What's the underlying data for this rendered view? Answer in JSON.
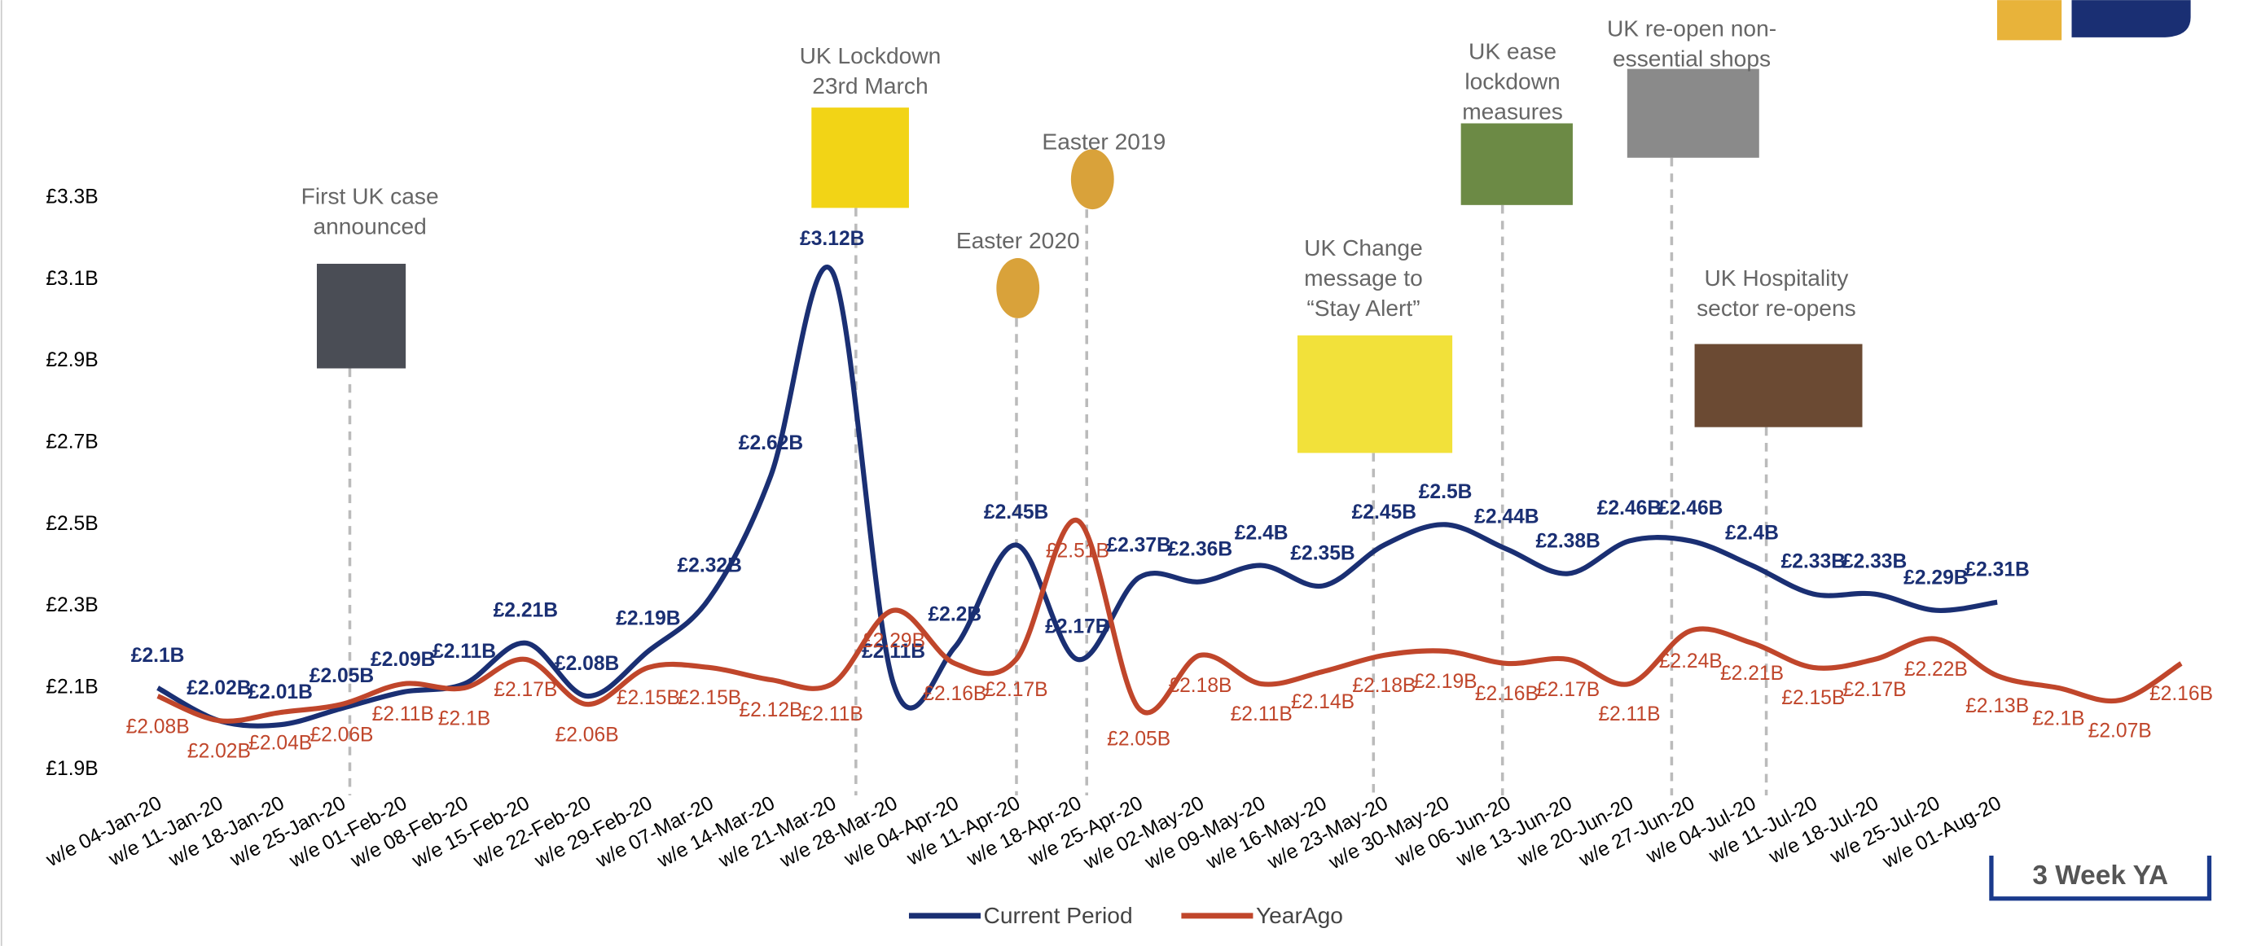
{
  "chart_data": {
    "type": "line",
    "categories": [
      "w/e 04-Jan-20",
      "w/e 11-Jan-20",
      "w/e 18-Jan-20",
      "w/e 25-Jan-20",
      "w/e 01-Feb-20",
      "w/e 08-Feb-20",
      "w/e 15-Feb-20",
      "w/e 22-Feb-20",
      "w/e 29-Feb-20",
      "w/e 07-Mar-20",
      "w/e 14-Mar-20",
      "w/e 21-Mar-20",
      "w/e 28-Mar-20",
      "w/e 04-Apr-20",
      "w/e 11-Apr-20",
      "w/e 18-Apr-20",
      "w/e 25-Apr-20",
      "w/e 02-May-20",
      "w/e 09-May-20",
      "w/e 16-May-20",
      "w/e 23-May-20",
      "w/e 30-May-20",
      "w/e 06-Jun-20",
      "w/e 13-Jun-20",
      "w/e 20-Jun-20",
      "w/e 27-Jun-20",
      "w/e 04-Jul-20",
      "w/e 11-Jul-20",
      "w/e 18-Jul-20",
      "w/e 25-Jul-20",
      "w/e 01-Aug-20",
      null,
      null,
      null
    ],
    "series": [
      {
        "name": "Current Period",
        "color": "#1a2f73",
        "values": [
          2.1,
          2.02,
          2.01,
          2.05,
          2.09,
          2.11,
          2.21,
          2.08,
          2.19,
          2.32,
          2.62,
          3.12,
          2.11,
          2.2,
          2.45,
          2.17,
          2.37,
          2.36,
          2.4,
          2.35,
          2.45,
          2.5,
          2.44,
          2.38,
          2.46,
          2.46,
          2.4,
          2.33,
          2.33,
          2.29,
          2.31,
          null,
          null,
          null
        ],
        "value_labels": [
          "£2.1B",
          "£2.02B",
          "£2.01B",
          "£2.05B",
          "£2.09B",
          "£2.11B",
          "£2.21B",
          "£2.08B",
          "£2.19B",
          "£2.32B",
          "£2.62B",
          "£3.12B",
          "£2.11B",
          "£2.2B",
          "£2.45B",
          "£2.17B",
          "£2.37B",
          "£2.36B",
          "£2.4B",
          "£2.35B",
          "£2.45B",
          "£2.5B",
          "£2.44B",
          "£2.38B",
          "£2.46B",
          "£2.46B",
          "£2.4B",
          "£2.33B",
          "£2.33B",
          "£2.29B",
          "£2.31B",
          null,
          null,
          null
        ]
      },
      {
        "name": "YearAgo",
        "color": "#c0462b",
        "values": [
          2.08,
          2.02,
          2.04,
          2.06,
          2.11,
          2.1,
          2.17,
          2.06,
          2.15,
          2.15,
          2.12,
          2.11,
          2.29,
          2.16,
          2.17,
          2.51,
          2.05,
          2.18,
          2.11,
          2.14,
          2.18,
          2.19,
          2.16,
          2.17,
          2.11,
          2.24,
          2.21,
          2.15,
          2.17,
          2.22,
          2.13,
          2.1,
          2.07,
          2.16
        ],
        "value_labels": [
          "£2.08B",
          "£2.02B",
          "£2.04B",
          "£2.06B",
          "£2.11B",
          "£2.1B",
          "£2.17B",
          "£2.06B",
          "£2.15B",
          "£2.15B",
          "£2.12B",
          "£2.11B",
          "£2.29B",
          "£2.16B",
          "£2.17B",
          "£2.51B",
          "£2.05B",
          "£2.18B",
          "£2.11B",
          "£2.14B",
          "£2.18B",
          "£2.19B",
          "£2.16B",
          "£2.17B",
          "£2.11B",
          "£2.24B",
          "£2.21B",
          "£2.15B",
          "£2.17B",
          "£2.22B",
          "£2.13B",
          "£2.1B",
          "£2.07B",
          "£2.16B"
        ]
      }
    ],
    "ylim": [
      1.9,
      3.3
    ],
    "yticks": [
      {
        "value": 1.9,
        "label": "£1.9B"
      },
      {
        "value": 2.1,
        "label": "£2.1B"
      },
      {
        "value": 2.3,
        "label": "£2.3B"
      },
      {
        "value": 2.5,
        "label": "£2.5B"
      },
      {
        "value": 2.7,
        "label": "£2.7B"
      },
      {
        "value": 2.9,
        "label": "£2.9B"
      },
      {
        "value": 3.1,
        "label": "£3.1B"
      },
      {
        "value": 3.3,
        "label": "£3.3B"
      }
    ],
    "grid": false,
    "legend": "bottom",
    "annotations": [
      {
        "lines": [
          "First UK case",
          "announced"
        ]
      },
      {
        "lines": [
          "UK Lockdown",
          "23rd March"
        ]
      },
      {
        "lines": [
          "Easter 2020"
        ]
      },
      {
        "lines": [
          "Easter 2019"
        ]
      },
      {
        "lines": [
          "UK Change",
          "message to",
          "“Stay Alert”"
        ]
      },
      {
        "lines": [
          "UK ease",
          "lockdown",
          "measures"
        ]
      },
      {
        "lines": [
          "UK re-open non-",
          "essential shops"
        ]
      },
      {
        "lines": [
          "UK Hospitality",
          "sector re-opens"
        ]
      }
    ],
    "badge": "3 Week YA"
  }
}
